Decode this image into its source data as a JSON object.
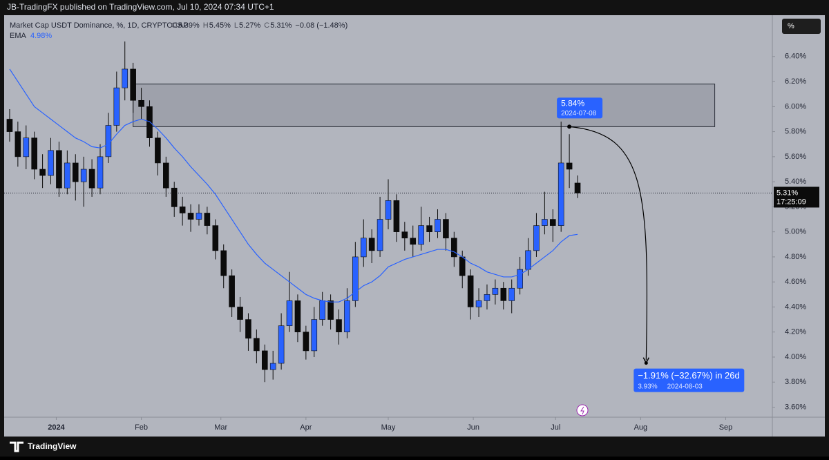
{
  "header": {
    "published": "JB-TradingFX published on TradingView.com, Jul 10, 2024 07:34 UTC+1",
    "scale_button": "%",
    "brand": "TradingView"
  },
  "legend": {
    "ohlc": [
      {
        "key": "O",
        "value": "5.39%"
      },
      {
        "key": "H",
        "value": "5.45%"
      },
      {
        "key": "L",
        "value": "5.27%"
      },
      {
        "key": "C",
        "value": "5.31%"
      }
    ],
    "change": "−0.08 (−1.48%)"
  },
  "chart_data": {
    "type": "candlestick",
    "title": "Market Cap USDT Dominance, %, 1D, CRYPTOCAP",
    "x": [
      -17,
      -14,
      -11,
      -8,
      -5,
      -2,
      1,
      4,
      7,
      10,
      13,
      16,
      19,
      22,
      25,
      28,
      31,
      34,
      37,
      40,
      43,
      46,
      49,
      52,
      55,
      58,
      61,
      64,
      67,
      70,
      73,
      76,
      79,
      82,
      85,
      88,
      91,
      94,
      97,
      100,
      103,
      106,
      109,
      112,
      115,
      118,
      121,
      124,
      127,
      130,
      133,
      136,
      139,
      142,
      145,
      148,
      151,
      154,
      157,
      160,
      163,
      166,
      169,
      172,
      175,
      178,
      181,
      184,
      187,
      190
    ],
    "open": [
      5.9,
      5.8,
      5.6,
      5.75,
      5.5,
      5.45,
      5.65,
      5.35,
      5.55,
      5.4,
      5.5,
      5.35,
      5.6,
      5.85,
      6.15,
      6.3,
      6.05,
      6.0,
      5.75,
      5.55,
      5.35,
      5.2,
      5.15,
      5.1,
      5.15,
      5.05,
      4.85,
      4.65,
      4.4,
      4.3,
      4.15,
      4.05,
      3.9,
      3.95,
      4.25,
      4.45,
      4.2,
      4.05,
      4.3,
      4.45,
      4.3,
      4.2,
      4.45,
      4.8,
      4.95,
      4.85,
      5.1,
      5.25,
      5.0,
      4.95,
      4.9,
      5.05,
      5.0,
      5.1,
      4.95,
      4.8,
      4.65,
      4.4,
      4.45,
      4.5,
      4.55,
      4.45,
      4.55,
      4.7,
      4.85,
      5.05,
      5.1,
      5.05,
      5.55,
      5.39
    ],
    "high": [
      5.98,
      5.88,
      5.85,
      5.8,
      5.62,
      5.75,
      5.72,
      5.65,
      5.62,
      5.6,
      5.58,
      5.7,
      5.95,
      6.28,
      6.52,
      6.35,
      6.15,
      6.05,
      5.8,
      5.6,
      5.4,
      5.28,
      5.22,
      5.22,
      5.2,
      5.1,
      4.9,
      4.7,
      4.48,
      4.35,
      4.22,
      4.1,
      4.05,
      4.35,
      4.68,
      4.5,
      4.25,
      4.4,
      4.52,
      4.5,
      4.38,
      4.55,
      4.92,
      5.1,
      5.02,
      5.28,
      5.42,
      5.3,
      5.08,
      5.05,
      5.2,
      5.12,
      5.18,
      5.15,
      5.0,
      4.85,
      4.7,
      4.55,
      4.58,
      4.62,
      4.6,
      4.62,
      4.8,
      4.95,
      5.15,
      5.32,
      5.18,
      5.88,
      5.78,
      5.45
    ],
    "low": [
      5.72,
      5.52,
      5.5,
      5.42,
      5.35,
      5.38,
      5.28,
      5.3,
      5.25,
      5.2,
      5.28,
      5.3,
      5.55,
      5.8,
      6.05,
      5.95,
      5.9,
      5.68,
      5.45,
      5.28,
      5.12,
      5.05,
      5.0,
      5.05,
      4.98,
      4.78,
      4.55,
      4.32,
      4.2,
      4.05,
      3.95,
      3.8,
      3.82,
      3.9,
      4.2,
      4.12,
      3.98,
      4.0,
      4.25,
      4.22,
      4.1,
      4.15,
      4.4,
      4.72,
      4.75,
      4.8,
      5.02,
      4.92,
      4.85,
      4.8,
      4.85,
      4.92,
      4.95,
      4.85,
      4.72,
      4.55,
      4.3,
      4.32,
      4.38,
      4.42,
      4.38,
      4.35,
      4.5,
      4.65,
      4.8,
      4.98,
      4.92,
      5.0,
      5.35,
      5.27
    ],
    "close": [
      5.8,
      5.6,
      5.75,
      5.5,
      5.45,
      5.65,
      5.35,
      5.55,
      5.4,
      5.5,
      5.35,
      5.6,
      5.85,
      6.15,
      6.3,
      6.05,
      6.0,
      5.75,
      5.55,
      5.35,
      5.2,
      5.15,
      5.1,
      5.15,
      5.05,
      4.85,
      4.65,
      4.4,
      4.3,
      4.15,
      4.05,
      3.9,
      3.95,
      4.25,
      4.45,
      4.2,
      4.05,
      4.3,
      4.45,
      4.3,
      4.2,
      4.45,
      4.8,
      4.95,
      4.85,
      5.1,
      5.25,
      5.0,
      4.95,
      4.9,
      5.05,
      5.0,
      5.1,
      4.95,
      4.8,
      4.65,
      4.4,
      4.45,
      4.5,
      4.55,
      4.45,
      4.55,
      4.7,
      4.85,
      5.05,
      5.1,
      5.05,
      5.55,
      5.5,
      5.31
    ],
    "up_color": "#2962ff",
    "down_color": "#0b0b0b",
    "ema": {
      "name": "EMA",
      "value_label": "4.98%",
      "color": "#2962ff",
      "values": [
        6.3,
        6.2,
        6.1,
        6.0,
        5.95,
        5.9,
        5.85,
        5.8,
        5.75,
        5.72,
        5.68,
        5.67,
        5.7,
        5.78,
        5.85,
        5.88,
        5.9,
        5.88,
        5.82,
        5.75,
        5.67,
        5.6,
        5.52,
        5.45,
        5.38,
        5.3,
        5.2,
        5.1,
        5.0,
        4.9,
        4.82,
        4.75,
        4.7,
        4.65,
        4.6,
        4.55,
        4.5,
        4.47,
        4.45,
        4.44,
        4.44,
        4.47,
        4.52,
        4.57,
        4.6,
        4.65,
        4.72,
        4.75,
        4.78,
        4.8,
        4.82,
        4.84,
        4.86,
        4.86,
        4.84,
        4.8,
        4.75,
        4.72,
        4.68,
        4.66,
        4.64,
        4.64,
        4.66,
        4.7,
        4.75,
        4.8,
        4.85,
        4.92,
        4.97,
        4.98
      ]
    },
    "xlim": [
      -19,
      261
    ],
    "xticks": [
      {
        "value": 0,
        "label": "2024"
      },
      {
        "value": 31,
        "label": "Feb"
      },
      {
        "value": 60,
        "label": "Mar"
      },
      {
        "value": 91,
        "label": "Apr"
      },
      {
        "value": 121,
        "label": "May"
      },
      {
        "value": 152,
        "label": "Jun"
      },
      {
        "value": 182,
        "label": "Jul"
      },
      {
        "value": 213,
        "label": "Aug"
      },
      {
        "value": 244,
        "label": "Sep"
      }
    ],
    "ylim": [
      3.52,
      6.73
    ],
    "yticks": [
      {
        "value": 3.6,
        "label": "3.60%"
      },
      {
        "value": 3.8,
        "label": "3.80%"
      },
      {
        "value": 4.0,
        "label": "4.00%"
      },
      {
        "value": 4.2,
        "label": "4.20%"
      },
      {
        "value": 4.4,
        "label": "4.40%"
      },
      {
        "value": 4.6,
        "label": "4.60%"
      },
      {
        "value": 4.8,
        "label": "4.80%"
      },
      {
        "value": 5.0,
        "label": "5.00%"
      },
      {
        "value": 5.2,
        "label": "5.20%"
      },
      {
        "value": 5.4,
        "label": "5.40%"
      },
      {
        "value": 5.6,
        "label": "5.60%"
      },
      {
        "value": 5.8,
        "label": "5.80%"
      },
      {
        "value": 6.0,
        "label": "6.00%"
      },
      {
        "value": 6.2,
        "label": "6.20%"
      },
      {
        "value": 6.4,
        "label": "6.40%"
      }
    ],
    "last_price": {
      "value": 5.31,
      "label": "5.31%",
      "countdown": "17:25:09"
    },
    "zone": {
      "x": [
        28,
        240
      ],
      "y": [
        5.84,
        6.18
      ]
    },
    "peak": {
      "x": 187,
      "value": 5.84,
      "label": "5.84%",
      "date": "2024-07-08"
    },
    "target": {
      "x": 215,
      "value": 3.93,
      "headline": "−1.91% (−32.67%) in 26d",
      "label": "3.93%",
      "date": "2024-08-03"
    }
  }
}
